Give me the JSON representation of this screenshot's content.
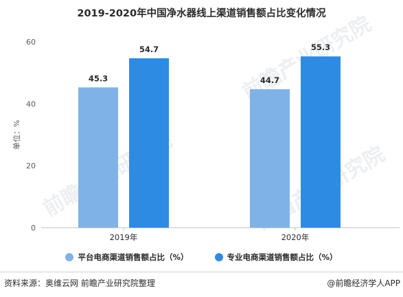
{
  "chart_data": {
    "type": "bar",
    "title": "2019-2020年中国净水器线上渠道销售额占比变化情况",
    "ylabel": "单位：%",
    "ylim": [
      0,
      60
    ],
    "yticks": [
      0,
      20,
      40,
      60
    ],
    "categories": [
      "2019年",
      "2020年"
    ],
    "series": [
      {
        "name": "平台电商渠道销售额占比（%）",
        "values": [
          45.3,
          44.7
        ],
        "color": "#7fb3e8"
      },
      {
        "name": "专业电商渠道销售额占比（%）",
        "values": [
          54.7,
          55.3
        ],
        "color": "#2e8be3"
      }
    ],
    "data_labels": [
      "45.3",
      "54.7",
      "44.7",
      "55.3"
    ],
    "grid": false,
    "legend": "bottom-center"
  },
  "footer": {
    "source": "资料来源：奥维云网 前瞻产业研究院整理",
    "brand": "@前瞻经济学人APP"
  },
  "watermark": {
    "text": "前瞻产业研究院"
  },
  "icons": {
    "legend_marker": "circle-dot"
  }
}
